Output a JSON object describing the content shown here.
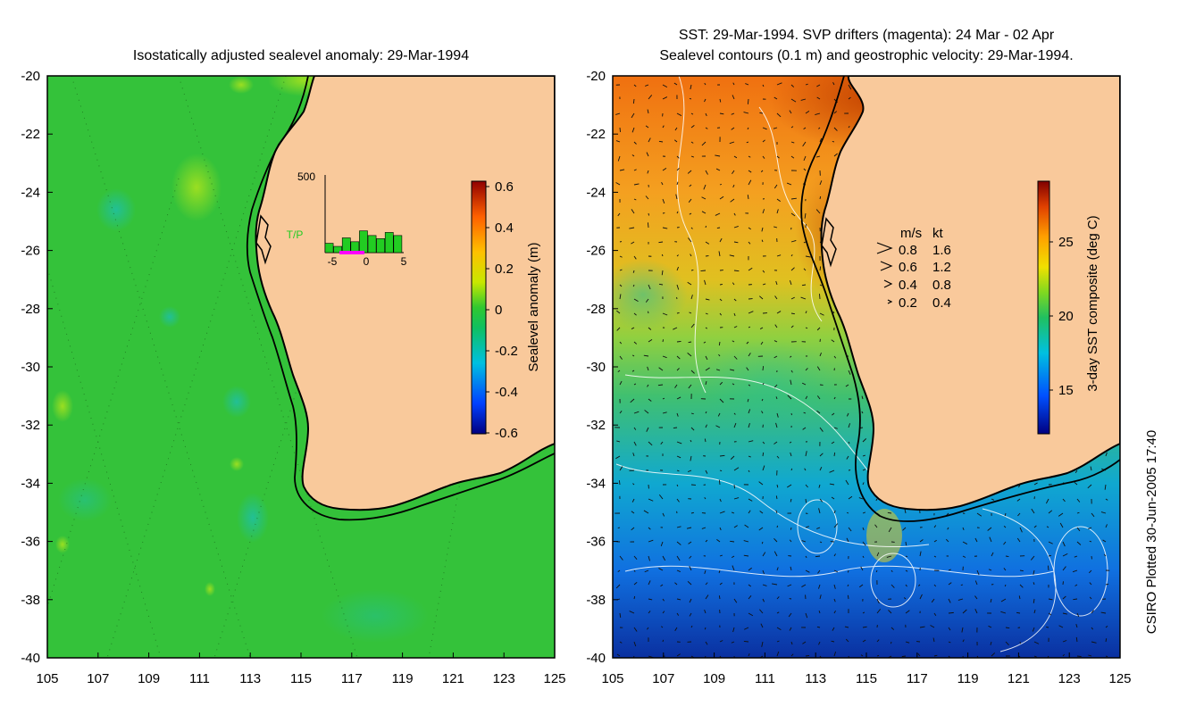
{
  "colors": {
    "land": "#f9c99b",
    "ocean_green": "#35c335",
    "coast": "#000000",
    "magenta": "#ff00ff",
    "hist_green": "#22cc22"
  },
  "left_panel": {
    "title": "Isostatically adjusted sealevel anomaly: 29-Mar-1994",
    "x_ticks": [
      "105",
      "107",
      "109",
      "111",
      "113",
      "115",
      "117",
      "119",
      "121",
      "123",
      "125"
    ],
    "y_ticks": [
      "-20",
      "-22",
      "-24",
      "-26",
      "-28",
      "-30",
      "-32",
      "-34",
      "-36",
      "-38",
      "-40"
    ],
    "colorbar": {
      "label": "Sealevel anomaly (m)",
      "ticks": [
        "0.6",
        "0.4",
        "0.2",
        "0",
        "-0.2",
        "-0.4",
        "-0.6"
      ]
    },
    "histogram": {
      "y_max_label": "500",
      "series_label": "T/P",
      "x_ticks": [
        "-5",
        "0",
        "5"
      ],
      "values": [
        60,
        40,
        95,
        70,
        140,
        110,
        90,
        130,
        110
      ]
    }
  },
  "right_panel": {
    "title_line1": "SST: 29-Mar-1994. SVP drifters (magenta): 24 Mar - 02 Apr",
    "title_line2": "Sealevel contours (0.1 m) and geostrophic velocity: 29-Mar-1994.",
    "x_ticks": [
      "105",
      "107",
      "109",
      "111",
      "113",
      "115",
      "117",
      "119",
      "121",
      "123",
      "125"
    ],
    "y_ticks": [
      "-20",
      "-22",
      "-24",
      "-26",
      "-28",
      "-30",
      "-32",
      "-34",
      "-36",
      "-38",
      "-40"
    ],
    "colorbar": {
      "label": "3-day SST composite (deg C)",
      "ticks": [
        "25",
        "20",
        "15"
      ]
    },
    "velocity_legend": {
      "header_ms": "m/s",
      "header_kt": "kt",
      "rows": [
        {
          "ms": "0.8",
          "kt": "1.6"
        },
        {
          "ms": "0.6",
          "kt": "1.2"
        },
        {
          "ms": "0.4",
          "kt": "0.8"
        },
        {
          "ms": "0.2",
          "kt": "0.4"
        }
      ]
    }
  },
  "credit": "CSIRO Plotted 30-Jun-2005 17:40"
}
